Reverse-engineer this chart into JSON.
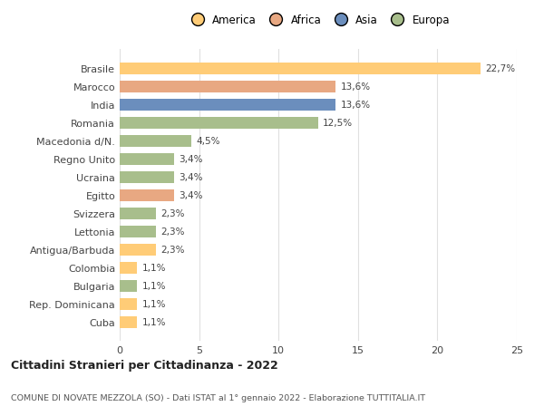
{
  "countries": [
    "Brasile",
    "Marocco",
    "India",
    "Romania",
    "Macedonia d/N.",
    "Regno Unito",
    "Ucraina",
    "Egitto",
    "Svizzera",
    "Lettonia",
    "Antigua/Barbuda",
    "Colombia",
    "Bulgaria",
    "Rep. Dominicana",
    "Cuba"
  ],
  "values": [
    22.7,
    13.6,
    13.6,
    12.5,
    4.5,
    3.4,
    3.4,
    3.4,
    2.3,
    2.3,
    2.3,
    1.1,
    1.1,
    1.1,
    1.1
  ],
  "labels": [
    "22,7%",
    "13,6%",
    "13,6%",
    "12,5%",
    "4,5%",
    "3,4%",
    "3,4%",
    "3,4%",
    "2,3%",
    "2,3%",
    "2,3%",
    "1,1%",
    "1,1%",
    "1,1%",
    "1,1%"
  ],
  "colors": [
    "#FFCC77",
    "#E8A882",
    "#6B8EBD",
    "#A8BE8C",
    "#A8BE8C",
    "#A8BE8C",
    "#A8BE8C",
    "#E8A882",
    "#A8BE8C",
    "#A8BE8C",
    "#FFCC77",
    "#FFCC77",
    "#A8BE8C",
    "#FFCC77",
    "#FFCC77"
  ],
  "continents": [
    "America",
    "Africa",
    "Asia",
    "Europa"
  ],
  "legend_colors": [
    "#FFCC77",
    "#E8A882",
    "#6B8EBD",
    "#A8BE8C"
  ],
  "xlim": [
    0,
    25
  ],
  "xticks": [
    0,
    5,
    10,
    15,
    20,
    25
  ],
  "title": "Cittadini Stranieri per Cittadinanza - 2022",
  "subtitle": "COMUNE DI NOVATE MEZZOLA (SO) - Dati ISTAT al 1° gennaio 2022 - Elaborazione TUTTITALIA.IT",
  "background_color": "#ffffff",
  "grid_color": "#e0e0e0",
  "bar_height": 0.65
}
